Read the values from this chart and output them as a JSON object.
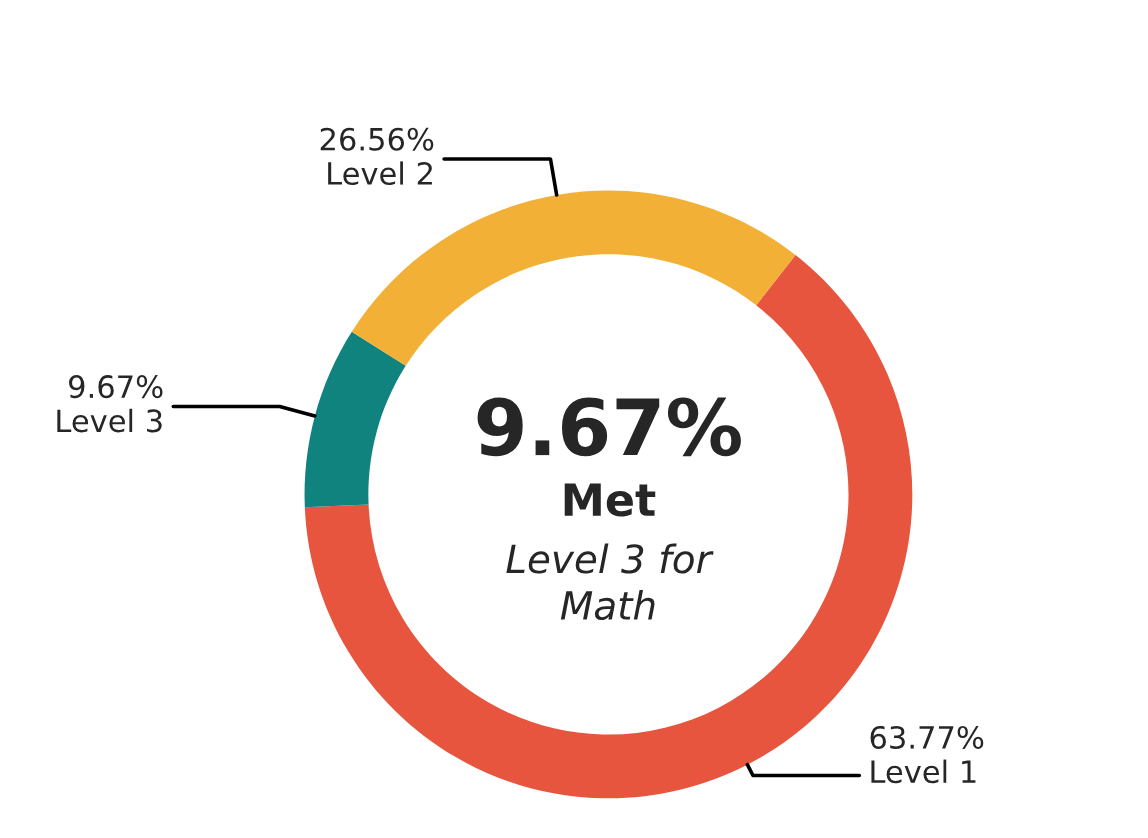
{
  "chart_data": {
    "type": "donut",
    "categories": [
      "Level 1",
      "Level 3",
      "Level 2"
    ],
    "values": [
      63.77,
      9.67,
      26.56
    ],
    "colors": [
      "#e8553e",
      "#11837f",
      "#f2b136"
    ],
    "value_labels": [
      "63.77%",
      "9.67%",
      "26.56%"
    ],
    "annotations": [
      "9.67%",
      "Met",
      "Level 3 for\nMath"
    ]
  }
}
